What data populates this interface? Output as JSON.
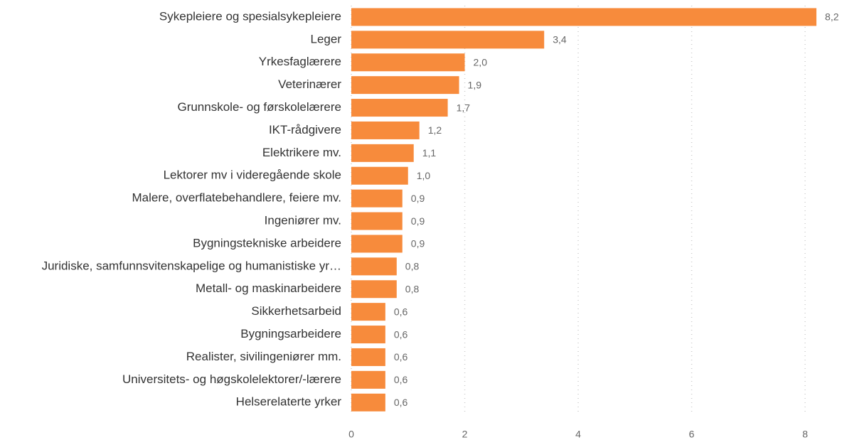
{
  "chart_data": {
    "type": "barh",
    "categories": [
      "Sykepleiere og spesialsykepleiere",
      "Leger",
      "Yrkesfaglærere",
      "Veterinærer",
      "Grunnskole- og førskolelærere",
      "IKT-rådgivere",
      "Elektrikere mv.",
      "Lektorer mv i videregående skole",
      "Malere, overflatebehandlere, feiere mv.",
      "Ingeniører mv.",
      "Bygningstekniske arbeidere",
      "Juridiske, samfunnsvitenskapelige og humanistiske yr…",
      "Metall- og maskinarbeidere",
      "Sikkerhetsarbeid",
      "Bygningsarbeidere",
      "Realister, sivilingeniører mm.",
      "Universitets- og høgskolelektorer/-lærere",
      "Helserelaterte yrker"
    ],
    "values": [
      8.2,
      3.4,
      2.0,
      1.9,
      1.7,
      1.2,
      1.1,
      1.0,
      0.9,
      0.9,
      0.9,
      0.8,
      0.8,
      0.6,
      0.6,
      0.6,
      0.6,
      0.6
    ],
    "value_labels": [
      "8,2",
      "3,4",
      "2,0",
      "1,9",
      "1,7",
      "1,2",
      "1,1",
      "1,0",
      "0,9",
      "0,9",
      "0,9",
      "0,8",
      "0,8",
      "0,6",
      "0,6",
      "0,6",
      "0,6",
      "0,6"
    ],
    "color": "#f78b3c",
    "xlim": [
      0,
      8.4
    ],
    "xticks": [
      0,
      2,
      4,
      6,
      8
    ],
    "grid": true
  }
}
